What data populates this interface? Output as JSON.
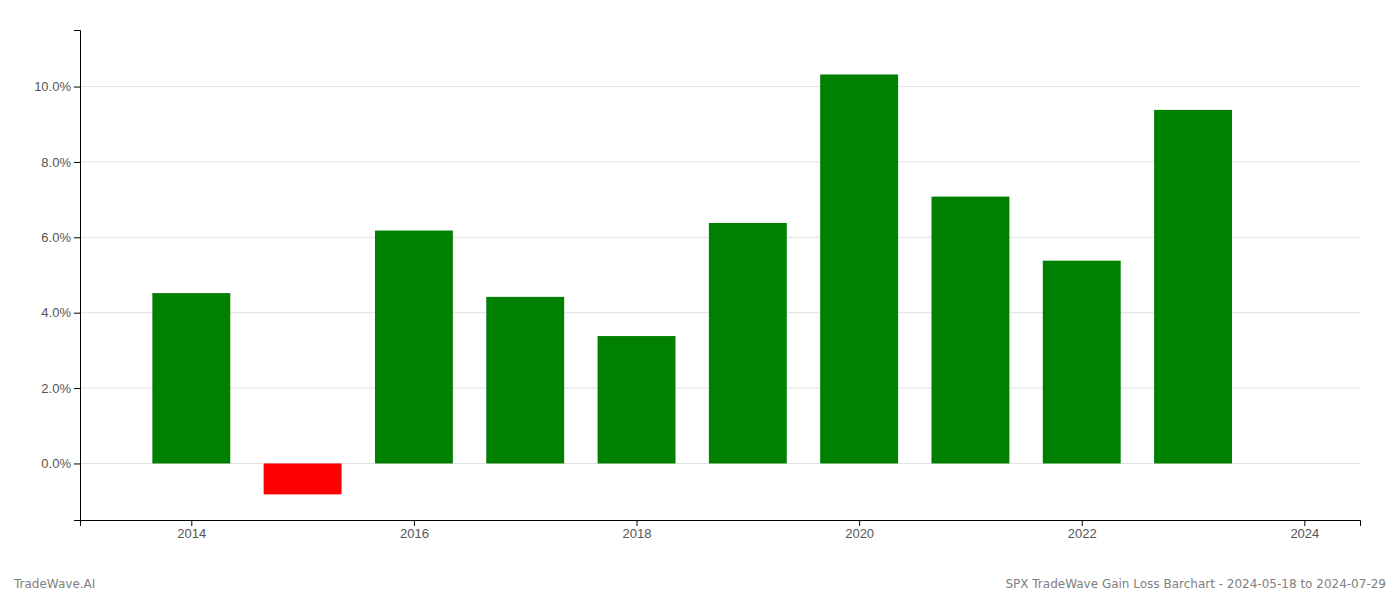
{
  "chart_data": {
    "type": "bar",
    "x": [
      2014,
      2015,
      2016,
      2017,
      2018,
      2019,
      2020,
      2021,
      2022,
      2023
    ],
    "values": [
      4.52,
      -0.82,
      6.18,
      4.42,
      3.38,
      6.38,
      10.32,
      7.08,
      5.38,
      9.38
    ],
    "colors": [
      "#008000",
      "#ff0000",
      "#008000",
      "#008000",
      "#008000",
      "#008000",
      "#008000",
      "#008000",
      "#008000",
      "#008000"
    ],
    "xlim": [
      2013.0,
      2024.5
    ],
    "xticks": [
      2014,
      2016,
      2018,
      2020,
      2022,
      2024
    ],
    "ylim": [
      -1.5,
      11.5
    ],
    "yticks": [
      {
        "value": 0,
        "label": "0.0%"
      },
      {
        "value": 2,
        "label": "2.0%"
      },
      {
        "value": 4,
        "label": "4.0%"
      },
      {
        "value": 6,
        "label": "6.0%"
      },
      {
        "value": 8,
        "label": "8.0%"
      },
      {
        "value": 10,
        "label": "10.0%"
      }
    ],
    "grid": true,
    "annotations": [
      "TradeWave.AI",
      "SPX TradeWave Gain Loss Barchart - 2024-05-18 to 2024-07-29"
    ]
  }
}
